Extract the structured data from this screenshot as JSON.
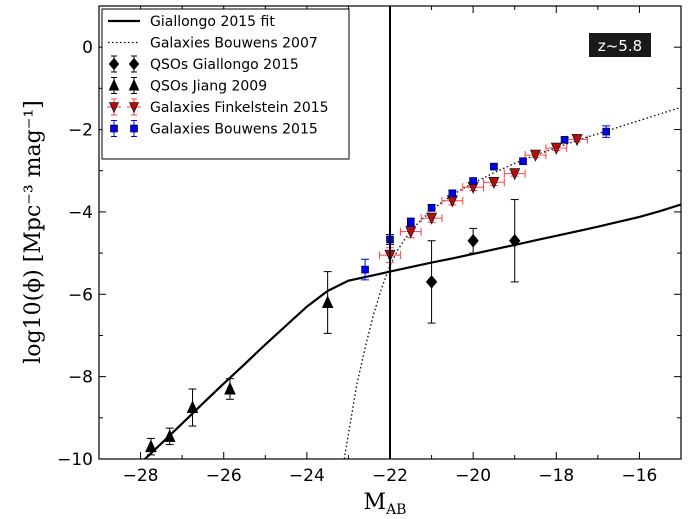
{
  "chart_data": {
    "type": "scatter",
    "xlabel": "M",
    "xlabel_sub": "AB",
    "ylabel": "log10(ϕ) [Mpc⁻³ mag⁻¹]",
    "xlim": [
      -29,
      -15
    ],
    "ylim": [
      -10,
      1
    ],
    "xticks": [
      -28,
      -26,
      -24,
      -22,
      -20,
      -18,
      -16
    ],
    "xtick_labels": [
      "−28",
      "−26",
      "−24",
      "−22",
      "−20",
      "−18",
      "−16"
    ],
    "yticks": [
      0,
      -2,
      -4,
      -6,
      -8,
      -10
    ],
    "ytick_labels": [
      "0",
      "−2",
      "−4",
      "−6",
      "−8",
      "−10"
    ],
    "annotation": "z~5.8",
    "vertical_line_x": -22,
    "legend_position": "upper-left",
    "series": [
      {
        "name": "Giallongo 2015 fit",
        "kind": "line",
        "style": "solid",
        "color": "#000000",
        "x": [
          -28,
          -27.5,
          -27,
          -26.5,
          -26,
          -25.5,
          -25,
          -24.5,
          -24,
          -23.5,
          -23,
          -22.5,
          -22,
          -21.5,
          -21,
          -20.5,
          -20,
          -19.5,
          -19,
          -18.5,
          -18,
          -17.5,
          -17,
          -16.5,
          -16,
          -15.5,
          -15
        ],
        "y": [
          -10.1,
          -9.62,
          -9.14,
          -8.65,
          -8.17,
          -7.7,
          -7.22,
          -6.76,
          -6.3,
          -5.92,
          -5.67,
          -5.56,
          -5.45,
          -5.34,
          -5.23,
          -5.13,
          -5.02,
          -4.91,
          -4.8,
          -4.69,
          -4.58,
          -4.47,
          -4.36,
          -4.24,
          -4.12,
          -3.98,
          -3.82
        ]
      },
      {
        "name": "Galaxies Bouwens 2007",
        "kind": "line",
        "style": "dotted",
        "color": "#000000",
        "x": [
          -23.1,
          -23.0,
          -22.8,
          -22.6,
          -22.4,
          -22.2,
          -22.0,
          -21.8,
          -21.6,
          -21.4,
          -21.2,
          -21.0,
          -20.8,
          -20.6,
          -20.4,
          -20.2,
          -20.0,
          -19.5,
          -19.0,
          -18.5,
          -18.0,
          -17.5,
          -17.0,
          -16.5,
          -16.0,
          -15.5,
          -15.0
        ],
        "y": [
          -10.0,
          -9.4,
          -8.2,
          -7.3,
          -6.5,
          -5.85,
          -5.3,
          -4.9,
          -4.6,
          -4.35,
          -4.15,
          -3.97,
          -3.8,
          -3.66,
          -3.53,
          -3.41,
          -3.3,
          -3.05,
          -2.82,
          -2.62,
          -2.44,
          -2.26,
          -2.1,
          -1.94,
          -1.78,
          -1.62,
          -1.46
        ]
      },
      {
        "name": "QSOs Giallongo 2015",
        "kind": "points",
        "marker": "diamond",
        "color": "#000000",
        "x": [
          -21,
          -20,
          -19
        ],
        "y": [
          -5.7,
          -4.7,
          -4.7
        ],
        "yerr": [
          1.0,
          0.3,
          1.0
        ]
      },
      {
        "name": "QSOs Jiang 2009",
        "kind": "points",
        "marker": "triangle-up",
        "color": "#000000",
        "x": [
          -27.75,
          -27.3,
          -26.75,
          -25.85,
          -23.5
        ],
        "y": [
          -9.7,
          -9.45,
          -8.75,
          -8.3,
          -6.2
        ],
        "yerr": [
          0.2,
          0.2,
          0.45,
          0.25,
          0.75
        ]
      },
      {
        "name": "Galaxies Finkelstein 2015",
        "kind": "points",
        "marker": "triangle-down",
        "color": "#b01010",
        "errcolor": "#ff4040",
        "x": [
          -22.0,
          -21.5,
          -21.0,
          -20.5,
          -20.0,
          -19.5,
          -19.0,
          -18.5,
          -18.0,
          -17.5
        ],
        "y": [
          -5.05,
          -4.48,
          -4.15,
          -3.73,
          -3.4,
          -3.28,
          -3.07,
          -2.62,
          -2.45,
          -2.24
        ],
        "xerr": [
          0.25,
          0.25,
          0.25,
          0.25,
          0.25,
          0.25,
          0.25,
          0.25,
          0.25,
          0.25
        ],
        "yerr": [
          0.18,
          0.15,
          0.1,
          0.1,
          0.08,
          0.08,
          0.06,
          0.06,
          0.06,
          0.06
        ]
      },
      {
        "name": "Galaxies Bouwens 2015",
        "kind": "points",
        "marker": "square",
        "color": "#0000ee",
        "x": [
          -22.6,
          -22.0,
          -21.5,
          -21.0,
          -20.5,
          -20.0,
          -19.5,
          -18.8,
          -17.8,
          -16.8
        ],
        "y": [
          -5.4,
          -4.67,
          -4.25,
          -3.9,
          -3.55,
          -3.25,
          -2.9,
          -2.77,
          -2.25,
          -2.05
        ],
        "yerr": [
          0.25,
          0.12,
          0.1,
          0.08,
          0.08,
          0.07,
          0.06,
          0.06,
          0.06,
          0.14
        ]
      }
    ]
  }
}
